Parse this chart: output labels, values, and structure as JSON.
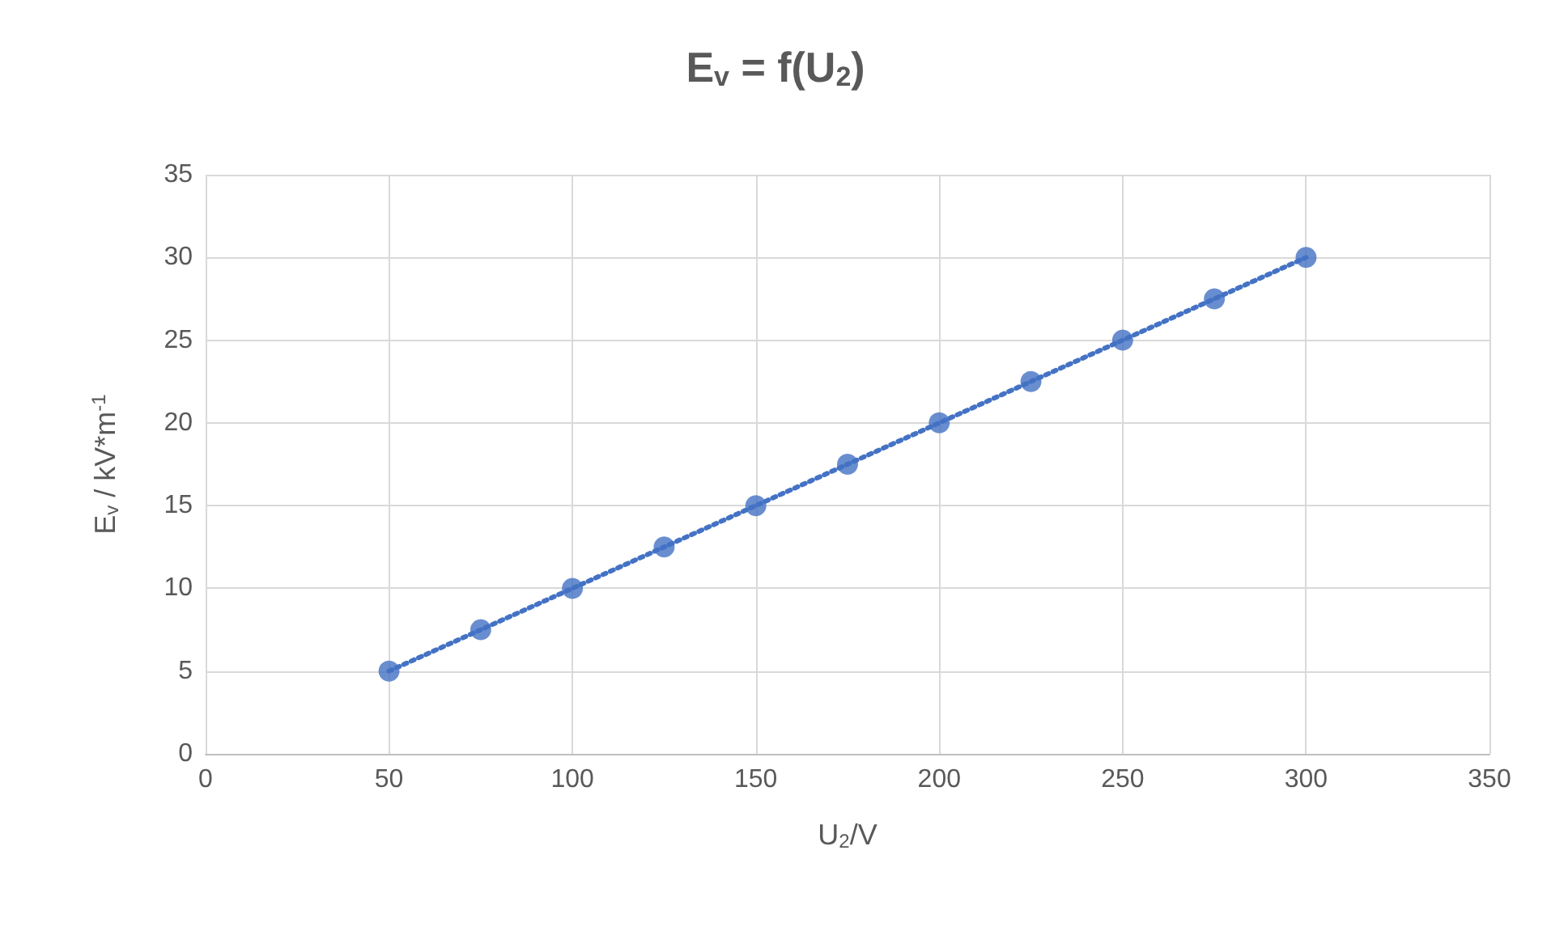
{
  "chart_data": {
    "type": "scatter",
    "title": "E$_{v}$ = f(U$_{2}$)",
    "xlabel": "U$_{2}$/V",
    "ylabel": "E$_{v}$ / kV*m$^{-1}$",
    "x": [
      50,
      75,
      100,
      125,
      150,
      175,
      200,
      225,
      250,
      275,
      300
    ],
    "series": [
      {
        "color": "#4472c4",
        "values": [
          5,
          7.5,
          10,
          12.5,
          15,
          17.5,
          20,
          22.5,
          25,
          27.5,
          30
        ]
      },
      {
        "type": "line",
        "color": "#4472c4",
        "x": [
          50,
          300
        ],
        "values": [
          5,
          30
        ],
        "line_style": "dotted",
        "marker": "none"
      }
    ],
    "marker": "circle",
    "grid": true,
    "xlim": [
      0,
      350
    ],
    "xticks": [
      0,
      50,
      100,
      150,
      200,
      250,
      300,
      350
    ],
    "ylim": [
      0,
      35
    ],
    "yticks": [
      0,
      5,
      10,
      15,
      20,
      25,
      30,
      35
    ]
  }
}
